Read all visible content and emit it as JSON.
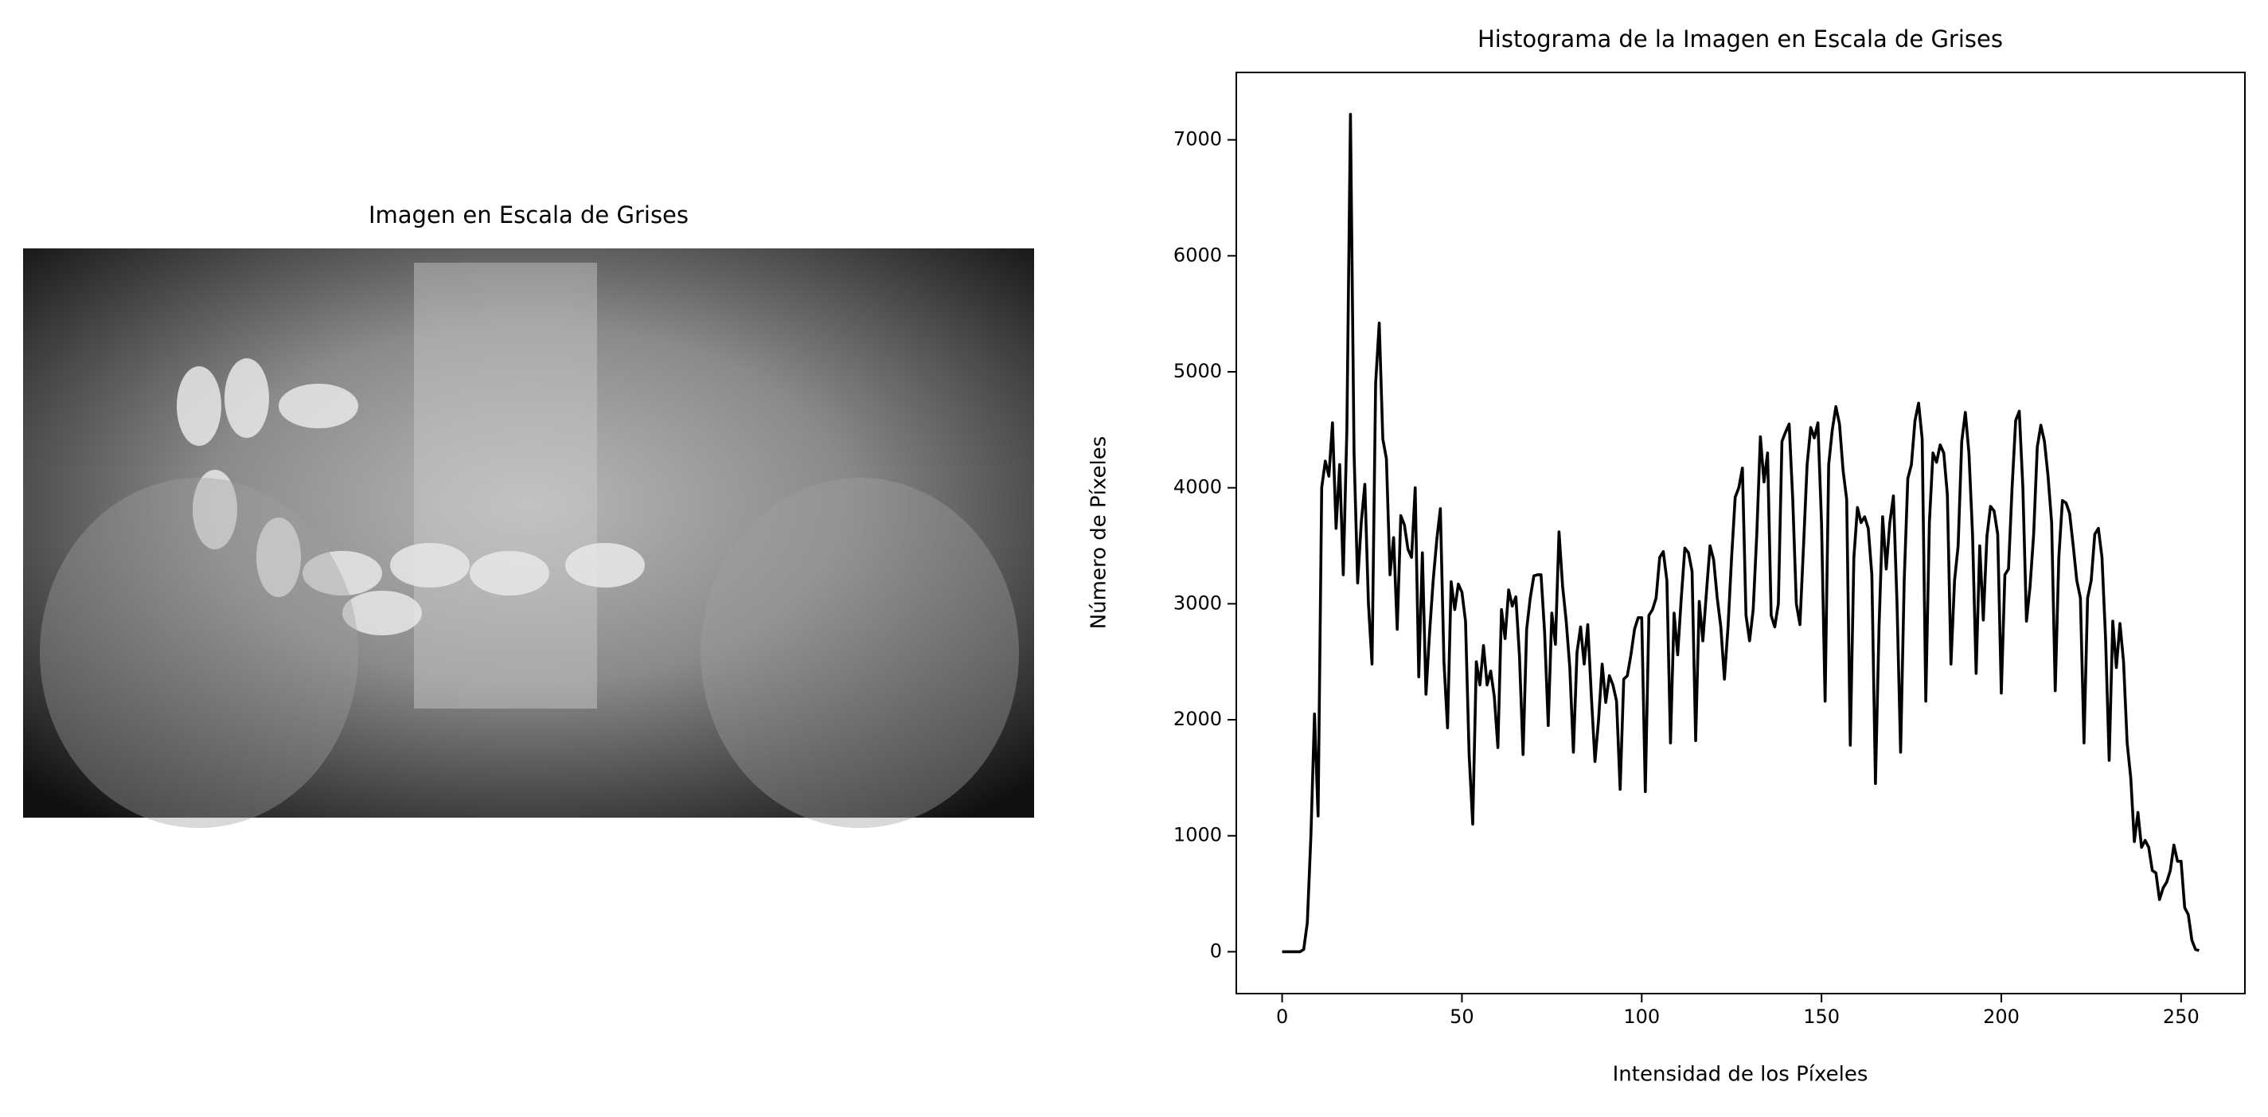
{
  "image_panel": {
    "title": "Imagen en Escala de Grises"
  },
  "chart_data": {
    "type": "line",
    "title": "Histograma de la Imagen en Escala de Grises",
    "x_label": "Intensidad de los Píxeles",
    "y_label": "Número de Píxeles",
    "color": "#000000",
    "x": [
      0,
      1,
      2,
      3,
      4,
      5,
      6,
      7,
      8,
      9,
      10,
      11,
      12,
      13,
      14,
      15,
      16,
      17,
      18,
      19,
      20,
      21,
      22,
      23,
      24,
      25,
      26,
      27,
      28,
      29,
      30,
      31,
      32,
      33,
      34,
      35,
      36,
      37,
      38,
      39,
      40,
      41,
      42,
      43,
      44,
      45,
      46,
      47,
      48,
      49,
      50,
      51,
      52,
      53,
      54,
      55,
      56,
      57,
      58,
      59,
      60,
      61,
      62,
      63,
      64,
      65,
      66,
      67,
      68,
      69,
      70,
      71,
      72,
      73,
      74,
      75,
      76,
      77,
      78,
      79,
      80,
      81,
      82,
      83,
      84,
      85,
      86,
      87,
      88,
      89,
      90,
      91,
      92,
      93,
      94,
      95,
      96,
      97,
      98,
      99,
      100,
      101,
      102,
      103,
      104,
      105,
      106,
      107,
      108,
      109,
      110,
      111,
      112,
      113,
      114,
      115,
      116,
      117,
      118,
      119,
      120,
      121,
      122,
      123,
      124,
      125,
      126,
      127,
      128,
      129,
      130,
      131,
      132,
      133,
      134,
      135,
      136,
      137,
      138,
      139,
      140,
      141,
      142,
      143,
      144,
      145,
      146,
      147,
      148,
      149,
      150,
      151,
      152,
      153,
      154,
      155,
      156,
      157,
      158,
      159,
      160,
      161,
      162,
      163,
      164,
      165,
      166,
      167,
      168,
      169,
      170,
      171,
      172,
      173,
      174,
      175,
      176,
      177,
      178,
      179,
      180,
      181,
      182,
      183,
      184,
      185,
      186,
      187,
      188,
      189,
      190,
      191,
      192,
      193,
      194,
      195,
      196,
      197,
      198,
      199,
      200,
      201,
      202,
      203,
      204,
      205,
      206,
      207,
      208,
      209,
      210,
      211,
      212,
      213,
      214,
      215,
      216,
      217,
      218,
      219,
      220,
      221,
      222,
      223,
      224,
      225,
      226,
      227,
      228,
      229,
      230,
      231,
      232,
      233,
      234,
      235,
      236,
      237,
      238,
      239,
      240,
      241,
      242,
      243,
      244,
      245,
      246,
      247,
      248,
      249,
      250,
      251,
      252,
      253,
      254,
      255
    ],
    "values": [
      0,
      0,
      0,
      0,
      0,
      0,
      20,
      250,
      1000,
      2050,
      1170,
      4000,
      4230,
      4100,
      4560,
      3650,
      4200,
      3250,
      4500,
      7220,
      4300,
      3180,
      3700,
      4030,
      3000,
      2480,
      4900,
      5420,
      4420,
      4250,
      3250,
      3570,
      2780,
      3760,
      3680,
      3470,
      3400,
      4000,
      2370,
      3440,
      2220,
      2750,
      3200,
      3550,
      3820,
      2500,
      1930,
      3190,
      2950,
      3170,
      3100,
      2850,
      1700,
      1100,
      2500,
      2300,
      2640,
      2300,
      2420,
      2200,
      1760,
      2950,
      2700,
      3120,
      2980,
      3060,
      2550,
      1700,
      2780,
      3050,
      3240,
      3250,
      3250,
      2750,
      1950,
      2920,
      2650,
      3620,
      3150,
      2850,
      2450,
      1720,
      2580,
      2800,
      2480,
      2820,
      2200,
      1640,
      2000,
      2480,
      2150,
      2380,
      2300,
      2160,
      1400,
      2350,
      2380,
      2560,
      2780,
      2880,
      2880,
      1380,
      2900,
      2950,
      3050,
      3400,
      3450,
      3200,
      1800,
      2920,
      2560,
      3050,
      3480,
      3440,
      3280,
      1820,
      3020,
      2680,
      3100,
      3500,
      3380,
      3050,
      2800,
      2350,
      2800,
      3400,
      3920,
      4000,
      4170,
      2900,
      2680,
      2950,
      3600,
      4440,
      4050,
      4300,
      2900,
      2800,
      3000,
      4400,
      4480,
      4550,
      3900,
      3000,
      2820,
      3500,
      4200,
      4520,
      4430,
      4560,
      3700,
      2160,
      4200,
      4500,
      4700,
      4550,
      4150,
      3900,
      1780,
      3400,
      3830,
      3700,
      3750,
      3650,
      3250,
      1450,
      2800,
      3750,
      3300,
      3700,
      3930,
      3000,
      1720,
      3200,
      4080,
      4200,
      4580,
      4730,
      4420,
      2160,
      3700,
      4300,
      4220,
      4370,
      4300,
      3940,
      2480,
      3200,
      3500,
      4400,
      4650,
      4300,
      3600,
      2400,
      3500,
      2860,
      3580,
      3840,
      3800,
      3600,
      2230,
      3250,
      3300,
      4000,
      4580,
      4660,
      4000,
      2850,
      3150,
      3600,
      4350,
      4540,
      4400,
      4100,
      3700,
      2250,
      3400,
      3890,
      3870,
      3780,
      3500,
      3200,
      3050,
      1800,
      3050,
      3200,
      3600,
      3650,
      3400,
      2700,
      1650,
      2850,
      2450,
      2830,
      2500,
      1800,
      1500,
      950,
      1200,
      900,
      960,
      900,
      700,
      680,
      450,
      550,
      600,
      700,
      920,
      780,
      780,
      380,
      320,
      100,
      20,
      10
    ],
    "xlim": [
      -12.75,
      267.75
    ],
    "ylim": [
      -361,
      7581
    ],
    "xticks": [
      0,
      50,
      100,
      150,
      200,
      250
    ],
    "yticks": [
      0,
      1000,
      2000,
      3000,
      4000,
      5000,
      6000,
      7000
    ],
    "grid": false
  }
}
